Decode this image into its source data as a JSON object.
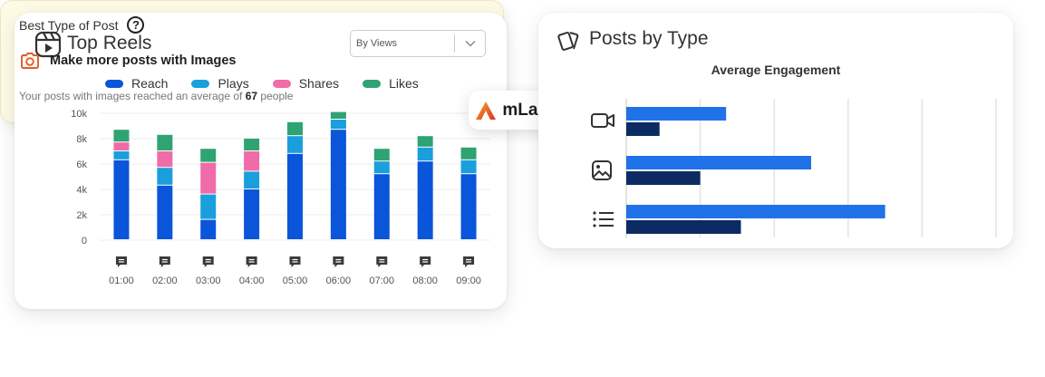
{
  "top_reels": {
    "title": "Top Reels",
    "sort_select": {
      "value": "By Views"
    },
    "legend": [
      {
        "label": "Reach",
        "color": "#0a55d9"
      },
      {
        "label": "Plays",
        "color": "#1a9fdc"
      },
      {
        "label": "Shares",
        "color": "#f06ba8"
      },
      {
        "label": "Likes",
        "color": "#2fa372"
      }
    ]
  },
  "brand": {
    "name": "mLabs"
  },
  "posts_by_type": {
    "title": "Posts by Type",
    "subtitle": "Average Engagement",
    "types": [
      {
        "icon": "video-icon"
      },
      {
        "icon": "image-icon"
      },
      {
        "icon": "list-icon"
      }
    ]
  },
  "best_post": {
    "title": "Best Type of Post",
    "help_symbol": "?",
    "headline": "Make more posts with Images",
    "desc_prefix": "Your posts with images reached an average of",
    "desc_value": "67",
    "desc_suffix": "people"
  },
  "chart_data": [
    {
      "type": "bar",
      "stacked": true,
      "categories": [
        "01:00",
        "02:00",
        "03:00",
        "04:00",
        "05:00",
        "06:00",
        "07:00",
        "08:00",
        "09:00"
      ],
      "yticks": [
        "0",
        "2k",
        "4k",
        "6k",
        "8k",
        "10k"
      ],
      "ylim": [
        0,
        10000
      ],
      "grid": true,
      "legend_position": "top",
      "series": [
        {
          "name": "Reach",
          "color": "#0a55d9",
          "values": [
            6300,
            4300,
            1600,
            4000,
            6800,
            8700,
            5200,
            6200,
            5200
          ]
        },
        {
          "name": "Plays",
          "color": "#1a9fdc",
          "values": [
            700,
            1400,
            2000,
            1400,
            1400,
            800,
            1000,
            1100,
            1100
          ]
        },
        {
          "name": "Shares",
          "color": "#f06ba8",
          "values": [
            700,
            1300,
            2500,
            1600,
            0,
            0,
            0,
            0,
            0
          ]
        },
        {
          "name": "Likes",
          "color": "#2fa372",
          "values": [
            1000,
            1300,
            1100,
            1000,
            1100,
            600,
            1000,
            900,
            1000
          ]
        }
      ]
    },
    {
      "type": "bar",
      "orientation": "horizontal",
      "title": "Average Engagement",
      "categories": [
        "video-icon",
        "image-icon",
        "list-icon"
      ],
      "grid": true,
      "xlim": [
        0,
        10
      ],
      "series": [
        {
          "color": "#1f72e8",
          "values": [
            2.7,
            5.0,
            7.0
          ]
        },
        {
          "color": "#0c2b63",
          "values": [
            0.9,
            2.0,
            3.1
          ]
        }
      ]
    }
  ]
}
